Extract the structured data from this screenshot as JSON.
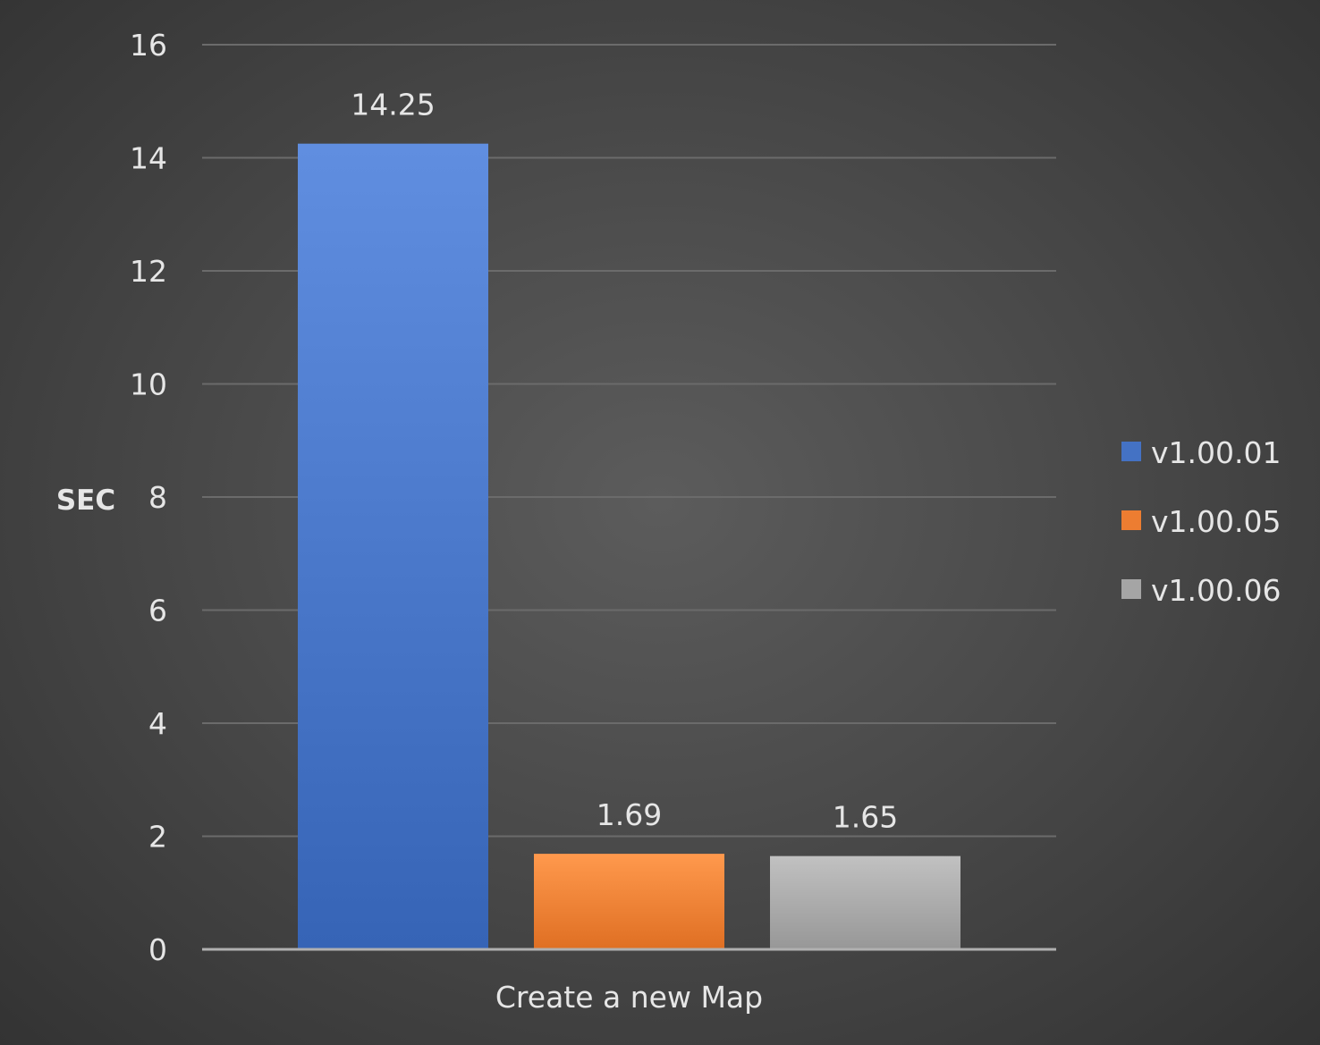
{
  "chart_data": {
    "type": "bar",
    "categories": [
      "Create a new Map"
    ],
    "series": [
      {
        "name": "v1.00.01",
        "values": [
          14.25
        ],
        "color": "#4472c4"
      },
      {
        "name": "v1.00.05",
        "values": [
          1.69
        ],
        "color": "#ed7d31"
      },
      {
        "name": "v1.00.06",
        "values": [
          1.65
        ],
        "color": "#a5a5a5"
      }
    ],
    "data_labels": [
      "14.25",
      "1.69",
      "1.65"
    ],
    "ylabel": "SEC",
    "xlabel": "",
    "ylim": [
      0,
      16
    ],
    "yticks": [
      0,
      2,
      4,
      6,
      8,
      10,
      12,
      14,
      16
    ],
    "grid": true,
    "legend_position": "right",
    "colors": {
      "gridline": "#6b6b6b",
      "axis_line": "#b0b0b0",
      "text": "#e6e6e6"
    }
  }
}
